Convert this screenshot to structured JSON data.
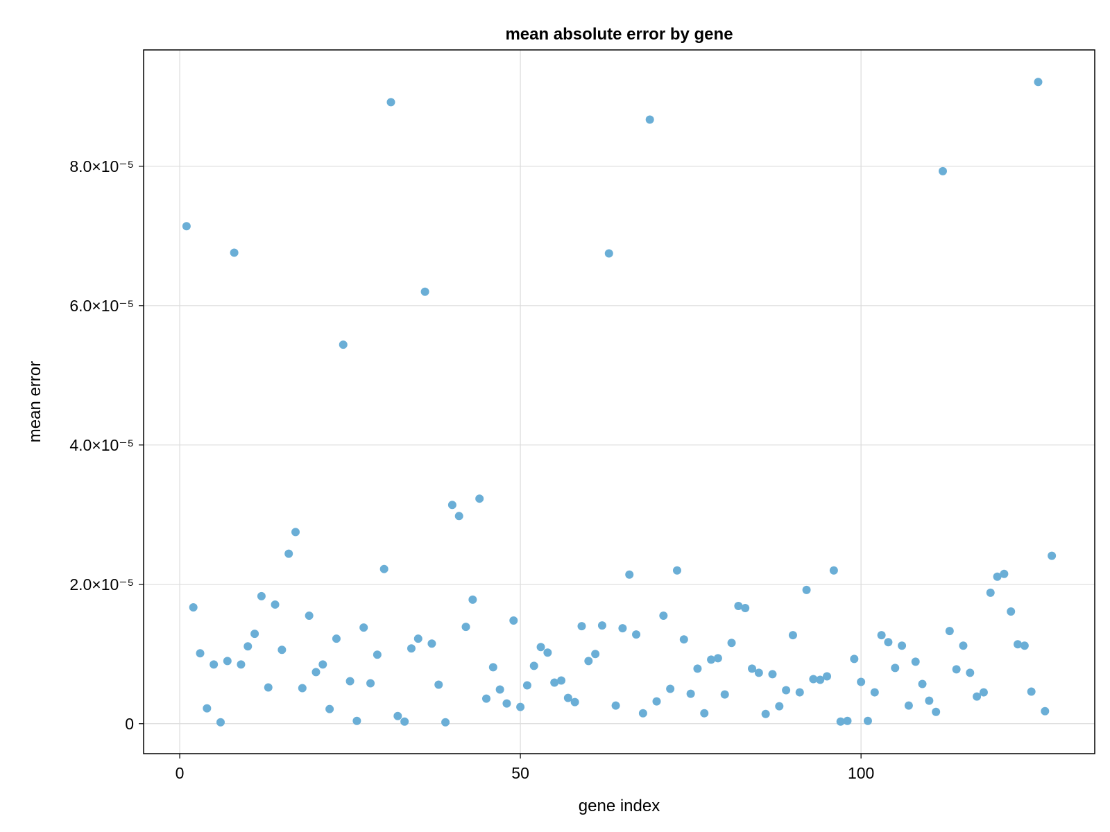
{
  "colors": {
    "point": "#6aaed6",
    "background": "#ffffff"
  },
  "chart_data": {
    "type": "scatter",
    "title": "mean absolute error by gene",
    "xlabel": "gene index",
    "ylabel": "mean error",
    "xlim": [
      -5.3,
      134.3
    ],
    "ylim": [
      -4.3e-06,
      9.67e-05
    ],
    "grid": true,
    "x_ticks": [
      {
        "value": 0,
        "label": "0"
      },
      {
        "value": 50,
        "label": "50"
      },
      {
        "value": 100,
        "label": "100"
      }
    ],
    "y_ticks": [
      {
        "value": 0,
        "label": "0"
      },
      {
        "value": 2e-05,
        "label": "2.0×10⁻⁵"
      },
      {
        "value": 4e-05,
        "label": "4.0×10⁻⁵"
      },
      {
        "value": 6e-05,
        "label": "6.0×10⁻⁵"
      },
      {
        "value": 8e-05,
        "label": "8.0×10⁻⁵"
      }
    ],
    "x": [
      1,
      2,
      3,
      4,
      5,
      6,
      7,
      8,
      9,
      10,
      11,
      12,
      13,
      14,
      15,
      16,
      17,
      18,
      19,
      20,
      21,
      22,
      23,
      24,
      25,
      26,
      27,
      28,
      29,
      30,
      31,
      32,
      33,
      34,
      35,
      36,
      37,
      38,
      39,
      40,
      41,
      42,
      43,
      44,
      45,
      46,
      47,
      48,
      49,
      50,
      51,
      52,
      53,
      54,
      55,
      56,
      57,
      58,
      59,
      60,
      61,
      62,
      63,
      64,
      65,
      66,
      67,
      68,
      69,
      70,
      71,
      72,
      73,
      74,
      75,
      76,
      77,
      78,
      79,
      80,
      81,
      82,
      83,
      84,
      85,
      86,
      87,
      88,
      89,
      90,
      91,
      92,
      93,
      94,
      95,
      96,
      97,
      98,
      99,
      100,
      101,
      102,
      103,
      104,
      105,
      106,
      107,
      108,
      109,
      110,
      111,
      112,
      113,
      114,
      115,
      116,
      117,
      118,
      119,
      120,
      121,
      122,
      123,
      124,
      125,
      126,
      127,
      128
    ],
    "y": [
      7.14e-05,
      1.67e-05,
      1.01e-05,
      2.2e-06,
      8.5e-06,
      2e-07,
      9e-06,
      6.76e-05,
      8.5e-06,
      1.11e-05,
      1.29e-05,
      1.83e-05,
      5.2e-06,
      1.71e-05,
      1.06e-05,
      2.44e-05,
      2.75e-05,
      5.1e-06,
      1.55e-05,
      7.4e-06,
      8.5e-06,
      2.1e-06,
      1.22e-05,
      5.44e-05,
      6.1e-06,
      4e-07,
      1.38e-05,
      5.8e-06,
      9.9e-06,
      2.22e-05,
      8.92e-05,
      1.1e-06,
      3e-07,
      1.08e-05,
      1.22e-05,
      6.2e-05,
      1.15e-05,
      5.6e-06,
      2e-07,
      3.14e-05,
      2.98e-05,
      1.39e-05,
      1.78e-05,
      3.23e-05,
      3.6e-06,
      8.1e-06,
      4.9e-06,
      2.9e-06,
      1.48e-05,
      2.4e-06,
      5.5e-06,
      8.3e-06,
      1.1e-05,
      1.02e-05,
      5.9e-06,
      6.2e-06,
      3.7e-06,
      3.1e-06,
      1.4e-05,
      9e-06,
      1e-05,
      1.41e-05,
      6.75e-05,
      2.6e-06,
      1.37e-05,
      2.14e-05,
      1.28e-05,
      1.5e-06,
      8.67e-05,
      3.2e-06,
      1.55e-05,
      5e-06,
      2.2e-05,
      1.21e-05,
      4.3e-06,
      7.9e-06,
      1.5e-06,
      9.2e-06,
      9.4e-06,
      4.2e-06,
      1.16e-05,
      1.69e-05,
      1.66e-05,
      7.9e-06,
      7.3e-06,
      1.4e-06,
      7.1e-06,
      2.5e-06,
      4.8e-06,
      1.27e-05,
      4.5e-06,
      1.92e-05,
      6.4e-06,
      6.3e-06,
      6.8e-06,
      2.2e-05,
      3e-07,
      4e-07,
      9.3e-06,
      6e-06,
      4e-07,
      4.5e-06,
      1.27e-05,
      1.17e-05,
      8e-06,
      1.12e-05,
      2.6e-06,
      8.9e-06,
      5.7e-06,
      3.3e-06,
      1.7e-06,
      7.93e-05,
      1.33e-05,
      7.8e-06,
      1.12e-05,
      7.3e-06,
      3.9e-06,
      4.5e-06,
      1.88e-05,
      2.11e-05,
      2.15e-05,
      1.61e-05,
      1.14e-05,
      1.12e-05,
      4.6e-06,
      9.21e-05,
      1.8e-06,
      2.41e-05
    ]
  }
}
